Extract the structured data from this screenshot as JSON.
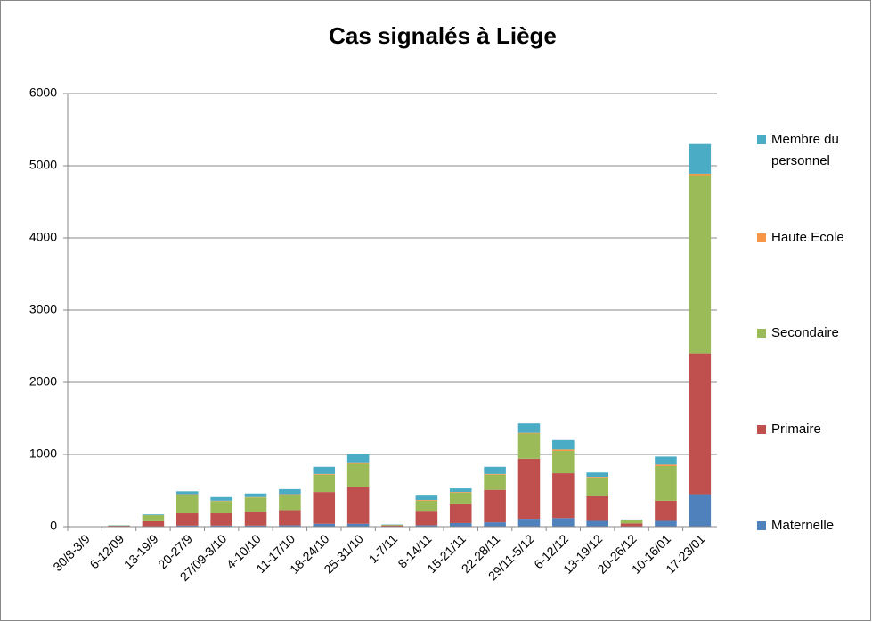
{
  "chart_data": {
    "type": "stacked_bar",
    "title": "Cas signalés à Liège",
    "categories": [
      "30/8-3/9",
      "6-12/09",
      "13-19/9",
      "20-27/9",
      "27/09-3/10",
      "4-10/10",
      "11-17/10",
      "18-24/10",
      "25-31/10",
      "1-7/11",
      "8-14/11",
      "15-21/11",
      "22-28/11",
      "29/11-5/12",
      "6-12/12",
      "13-19/12",
      "20-26/12",
      "10-16/01",
      "17-23/01"
    ],
    "series": [
      {
        "name": "Maternelle",
        "color": "#4f81bd",
        "values": [
          0,
          2,
          5,
          15,
          15,
          15,
          20,
          40,
          40,
          2,
          20,
          50,
          60,
          110,
          120,
          80,
          5,
          80,
          450
        ]
      },
      {
        "name": "Primaire",
        "color": "#c0504d",
        "values": [
          0,
          10,
          70,
          170,
          170,
          190,
          210,
          440,
          510,
          15,
          200,
          260,
          450,
          830,
          620,
          340,
          40,
          280,
          1950
        ]
      },
      {
        "name": "Secondaire",
        "color": "#9bbb59",
        "values": [
          0,
          5,
          85,
          260,
          170,
          200,
          210,
          240,
          320,
          8,
          140,
          160,
          210,
          350,
          310,
          260,
          45,
          480,
          2470
        ]
      },
      {
        "name": "Haute Ecole",
        "color": "#f79646",
        "values": [
          0,
          0,
          0,
          5,
          5,
          5,
          10,
          10,
          10,
          0,
          10,
          10,
          10,
          10,
          20,
          10,
          0,
          20,
          20
        ]
      },
      {
        "name": "Membre du personnel",
        "color": "#4bacc6",
        "values": [
          0,
          3,
          10,
          40,
          50,
          50,
          70,
          100,
          120,
          5,
          60,
          50,
          100,
          130,
          130,
          60,
          10,
          110,
          410
        ]
      }
    ],
    "ylim": [
      0,
      6000
    ],
    "yticks": [
      0,
      1000,
      2000,
      3000,
      4000,
      5000,
      6000
    ],
    "grid": true
  }
}
